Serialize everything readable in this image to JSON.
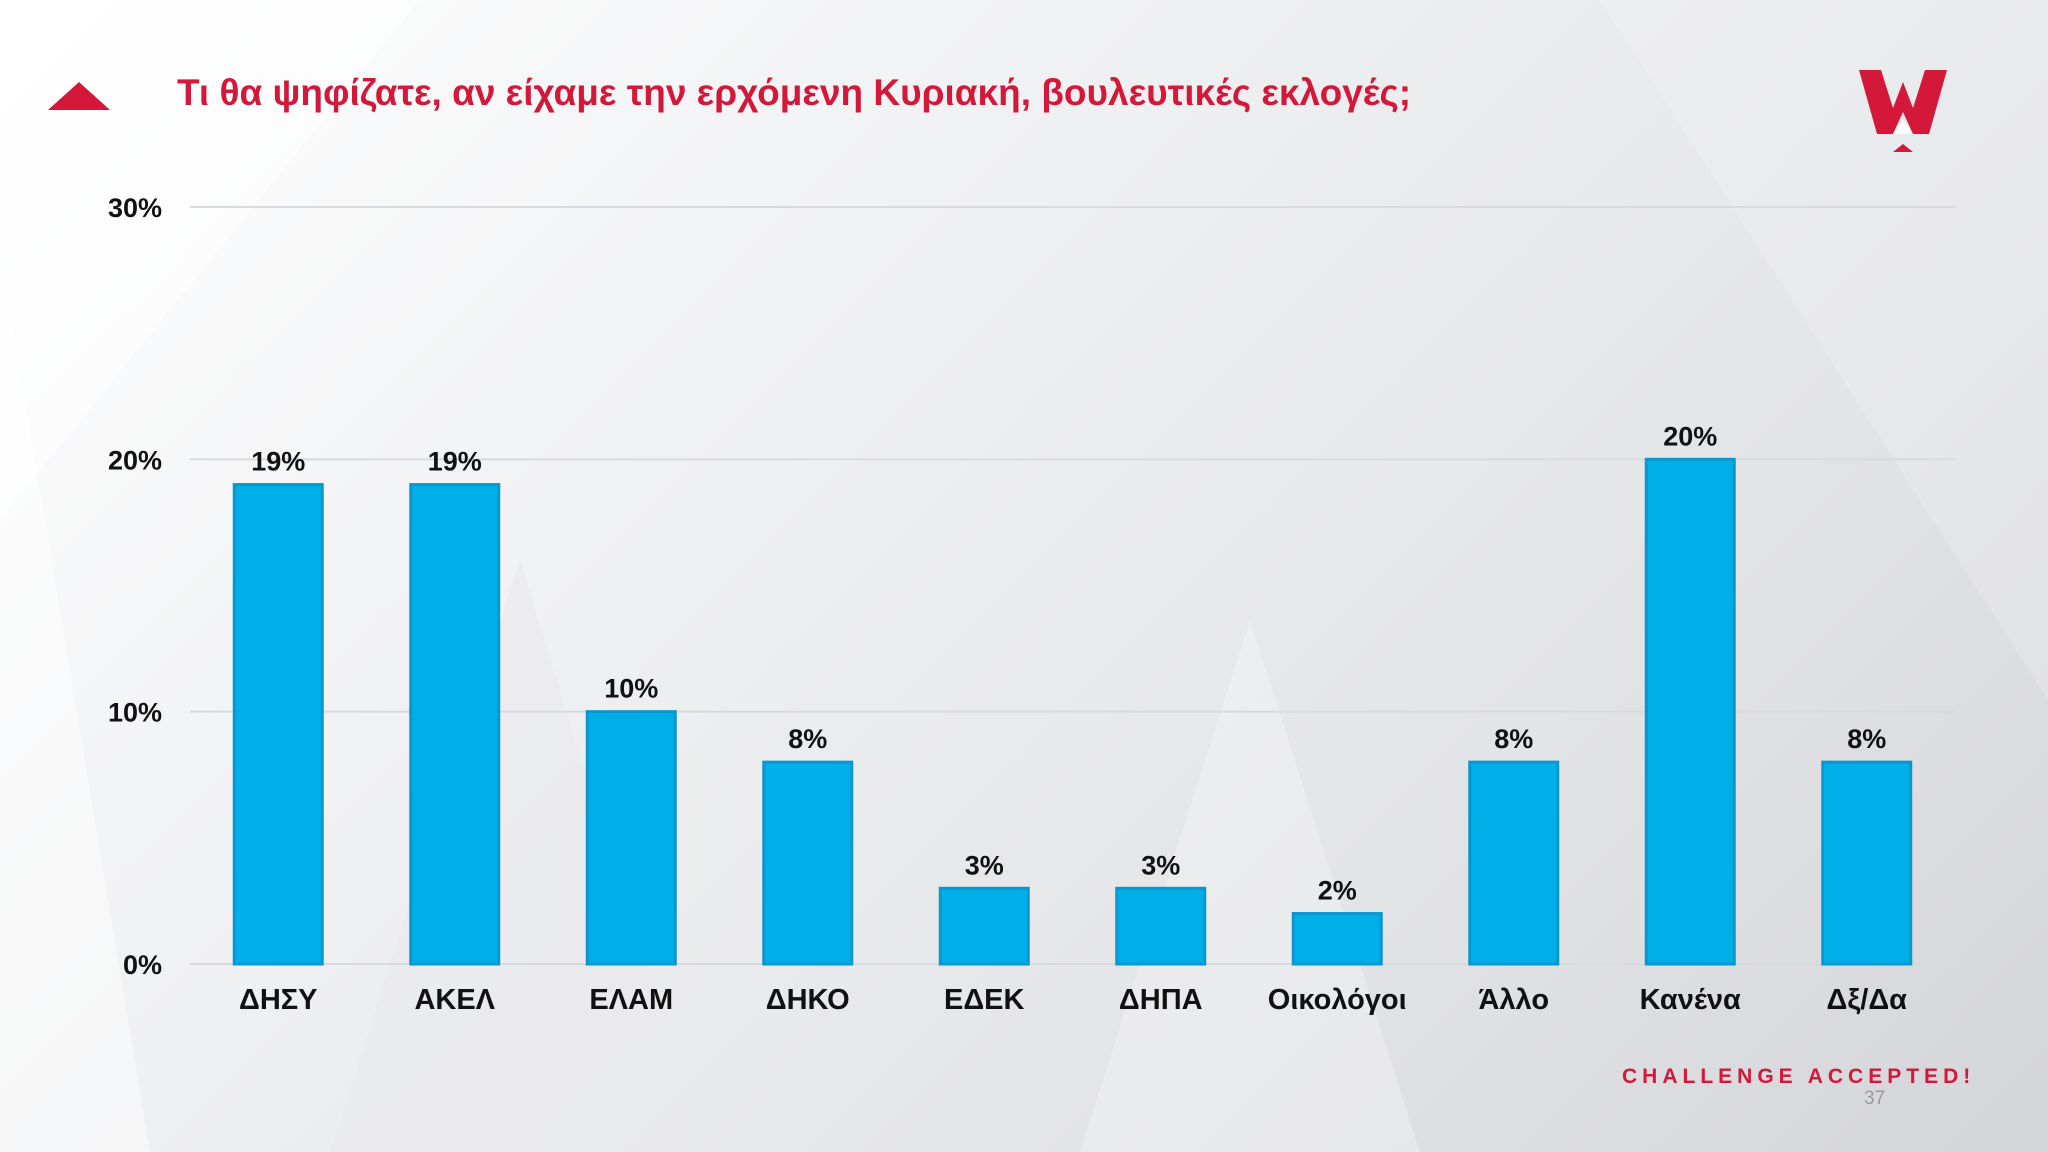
{
  "slide": {
    "title": "Τι θα ψηφίζατε, αν είχαμε την ερχόμενη Κυριακή, βουλευτικές εκλογές;",
    "tagline": "CHALLENGE ACCEPTED!",
    "page_number": "37",
    "logo_icon": "w-crown-logo-icon",
    "accent_icon": "red-triangle-icon"
  },
  "colors": {
    "accent": "#d4183a",
    "bar": "#00aee8",
    "bar_edge": "#0a97cf",
    "axis_text": "#111111",
    "grid": "#d9dadd"
  },
  "chart_data": {
    "type": "bar",
    "title": "",
    "xlabel": "",
    "ylabel": "",
    "categories": [
      "ΔΗΣΥ",
      "ΑΚΕΛ",
      "ΕΛΑΜ",
      "ΔΗΚΟ",
      "ΕΔΕΚ",
      "ΔΗΠΑ",
      "Οικολόγοι",
      "Άλλο",
      "Κανένα",
      "Δξ/Δα"
    ],
    "values": [
      19,
      19,
      10,
      8,
      3,
      3,
      2,
      8,
      20,
      8
    ],
    "data_labels": [
      "19%",
      "19%",
      "10%",
      "8%",
      "3%",
      "3%",
      "2%",
      "8%",
      "20%",
      "8%"
    ],
    "yticks": [
      0,
      10,
      20,
      30
    ],
    "ytick_labels": [
      "0%",
      "10%",
      "20%",
      "30%"
    ],
    "ylim": [
      0,
      30
    ],
    "grid": true,
    "legend": "none"
  }
}
